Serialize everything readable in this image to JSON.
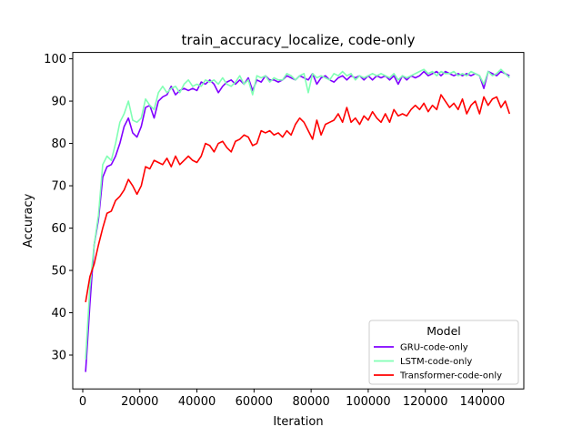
{
  "chart_data": {
    "type": "line",
    "title": "train_accuracy_localize, code-only",
    "xlabel": "Iteration",
    "ylabel": "Accuracy",
    "xlim": [
      -3500,
      154500
    ],
    "ylim": [
      22,
      101.5
    ],
    "xticks": [
      0,
      20000,
      40000,
      60000,
      80000,
      100000,
      120000,
      140000
    ],
    "yticks": [
      30,
      40,
      50,
      60,
      70,
      80,
      90,
      100
    ],
    "grid": false,
    "legend": {
      "title": "Model",
      "placement": "lower-right"
    },
    "series": [
      {
        "name": "GRU-code-only",
        "color": "#8000ff",
        "x": [
          1000,
          2500,
          4000,
          5500,
          7000,
          8500,
          10000,
          11500,
          13000,
          14500,
          16000,
          17500,
          19000,
          20500,
          22000,
          23500,
          25000,
          26500,
          28000,
          29500,
          31000,
          32500,
          34000,
          35500,
          37000,
          38500,
          40000,
          41500,
          43000,
          44500,
          46000,
          47500,
          49000,
          50500,
          52000,
          53500,
          55000,
          56500,
          58000,
          59500,
          61000,
          62500,
          64000,
          65500,
          67000,
          68500,
          70000,
          71500,
          73000,
          74500,
          76000,
          77500,
          79000,
          80500,
          82000,
          83500,
          85000,
          86500,
          88000,
          89500,
          91000,
          92500,
          94000,
          95500,
          97000,
          98500,
          100000,
          101500,
          103000,
          104500,
          106000,
          107500,
          109000,
          110500,
          112000,
          113500,
          115000,
          116500,
          118000,
          119500,
          121000,
          122500,
          124000,
          125500,
          127000,
          128500,
          130000,
          131500,
          133000,
          134500,
          136000,
          137500,
          139000,
          140500,
          142000,
          143500,
          145000,
          146500,
          148000,
          149500
        ],
        "y": [
          26,
          42,
          56,
          62,
          72,
          74.5,
          75,
          77,
          80,
          84,
          86,
          82.5,
          81.5,
          84,
          88.5,
          89,
          86,
          90,
          91,
          91.5,
          93.5,
          91.5,
          92.5,
          93,
          92.5,
          93,
          92.5,
          94.5,
          94,
          95,
          94,
          92,
          93.5,
          94.5,
          95,
          94,
          95,
          94,
          95.5,
          92.5,
          95,
          94.5,
          96,
          95,
          95,
          94.5,
          95,
          96,
          95.5,
          95,
          96,
          95.5,
          95,
          96.5,
          94,
          95.5,
          96,
          95,
          94.5,
          95.5,
          96,
          95,
          96,
          95.5,
          96,
          95,
          96,
          95,
          96,
          95.5,
          96,
          95,
          96,
          94,
          96,
          95,
          96,
          95.5,
          96,
          97,
          96,
          96.5,
          97,
          96,
          97,
          96.5,
          96,
          96.5,
          96,
          96.5,
          96,
          96.5,
          96,
          93,
          97,
          96.5,
          96,
          97,
          96.5,
          96
        ]
      },
      {
        "name": "LSTM-code-only",
        "color": "#80ffb4",
        "x": [
          1000,
          2500,
          4000,
          5500,
          7000,
          8500,
          10000,
          11500,
          13000,
          14500,
          16000,
          17500,
          19000,
          20500,
          22000,
          23500,
          25000,
          26500,
          28000,
          29500,
          31000,
          32500,
          34000,
          35500,
          37000,
          38500,
          40000,
          41500,
          43000,
          44500,
          46000,
          47500,
          49000,
          50500,
          52000,
          53500,
          55000,
          56500,
          58000,
          59500,
          61000,
          62500,
          64000,
          65500,
          67000,
          68500,
          70000,
          71500,
          73000,
          74500,
          76000,
          77500,
          79000,
          80500,
          82000,
          83500,
          85000,
          86500,
          88000,
          89500,
          91000,
          92500,
          94000,
          95500,
          97000,
          98500,
          100000,
          101500,
          103000,
          104500,
          106000,
          107500,
          109000,
          110500,
          112000,
          113500,
          115000,
          116500,
          118000,
          119500,
          121000,
          122500,
          124000,
          125500,
          127000,
          128500,
          130000,
          131500,
          133000,
          134500,
          136000,
          137500,
          139000,
          140500,
          142000,
          143500,
          145000,
          146500,
          148000,
          149500
        ],
        "y": [
          29,
          46,
          56,
          63,
          75,
          77,
          76,
          80,
          85,
          87,
          90,
          85.5,
          85,
          86,
          90.5,
          89,
          88,
          92,
          93.5,
          92,
          93,
          93.5,
          92,
          94,
          95,
          93.5,
          94,
          93.5,
          95,
          94.5,
          95,
          94,
          95.5,
          94,
          93.5,
          94.5,
          96,
          94,
          95,
          91.5,
          96,
          95.5,
          96,
          94.5,
          95.5,
          95,
          95,
          96.5,
          96,
          95,
          96,
          96.5,
          92,
          96.5,
          95.5,
          96,
          95.5,
          95,
          96.5,
          96,
          97,
          96,
          96.5,
          95,
          96,
          95.5,
          96,
          96.5,
          96,
          96.5,
          96,
          95.5,
          96.5,
          95,
          96,
          95.5,
          96,
          96.5,
          97,
          97.5,
          96.5,
          97,
          96,
          97,
          96.5,
          96.5,
          97,
          96,
          96.5,
          96,
          97,
          96.5,
          96,
          94,
          97,
          96,
          96.5,
          97.5,
          96.5,
          95.5
        ]
      },
      {
        "name": "Transformer-code-only",
        "color": "#ff0000",
        "x": [
          1000,
          2500,
          4000,
          5500,
          7000,
          8500,
          10000,
          11500,
          13000,
          14500,
          16000,
          17500,
          19000,
          20500,
          22000,
          23500,
          25000,
          26500,
          28000,
          29500,
          31000,
          32500,
          34000,
          35500,
          37000,
          38500,
          40000,
          41500,
          43000,
          44500,
          46000,
          47500,
          49000,
          50500,
          52000,
          53500,
          55000,
          56500,
          58000,
          59500,
          61000,
          62500,
          64000,
          65500,
          67000,
          68500,
          70000,
          71500,
          73000,
          74500,
          76000,
          77500,
          79000,
          80500,
          82000,
          83500,
          85000,
          86500,
          88000,
          89500,
          91000,
          92500,
          94000,
          95500,
          97000,
          98500,
          100000,
          101500,
          103000,
          104500,
          106000,
          107500,
          109000,
          110500,
          112000,
          113500,
          115000,
          116500,
          118000,
          119500,
          121000,
          122500,
          124000,
          125500,
          127000,
          128500,
          130000,
          131500,
          133000,
          134500,
          136000,
          137500,
          139000,
          140500,
          142000,
          143500,
          145000,
          146500,
          148000,
          149500
        ],
        "y": [
          42.5,
          48.5,
          51.5,
          56,
          60,
          63.5,
          64,
          66.5,
          67.5,
          69,
          71.5,
          70,
          68,
          70,
          74.5,
          74,
          76,
          75.5,
          75,
          76.5,
          74.5,
          77,
          75,
          76,
          77,
          76,
          75.5,
          77,
          80,
          79.5,
          78,
          80,
          80.5,
          79,
          78,
          80.5,
          81,
          82,
          81.5,
          79.5,
          80,
          83,
          82.5,
          83,
          82,
          82.5,
          81.5,
          83,
          82,
          84.5,
          86,
          85,
          83,
          81,
          85.5,
          82,
          84.5,
          85,
          85.5,
          87,
          85,
          88.5,
          85,
          86,
          84.5,
          86.5,
          85.5,
          87.5,
          86,
          85,
          87,
          85,
          88,
          86.5,
          87,
          86.5,
          88,
          89,
          88,
          89.5,
          87.5,
          89,
          88,
          91.5,
          90,
          88.5,
          89.5,
          88,
          90.5,
          87,
          89,
          90,
          87,
          91,
          89,
          90.5,
          91,
          88.5,
          90,
          87
        ]
      }
    ]
  }
}
